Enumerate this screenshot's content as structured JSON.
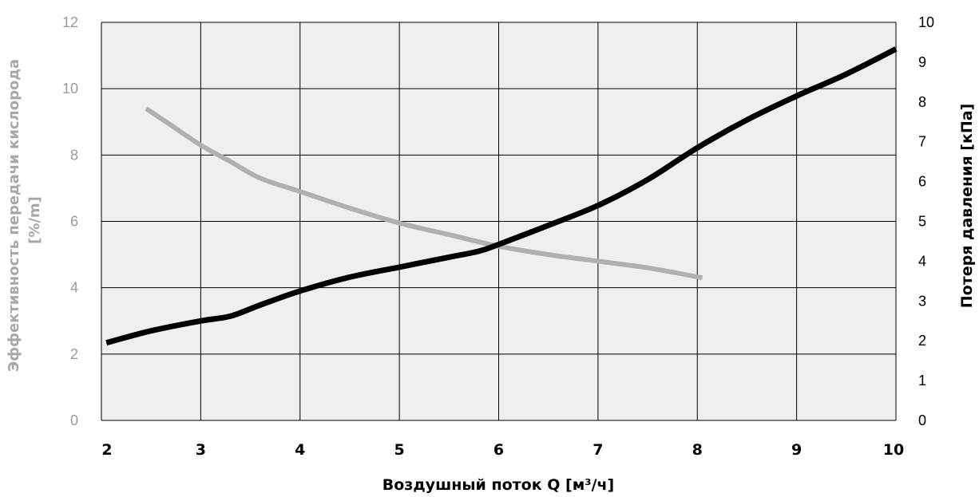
{
  "chart_data": {
    "type": "line",
    "xlabel": "Воздушный поток Q [м³/ч]",
    "xlim": [
      2,
      10
    ],
    "x_ticks": [
      "2",
      "3",
      "4",
      "5",
      "6",
      "7",
      "8",
      "9",
      "10"
    ],
    "y_left": {
      "label_line1": "Эффективность передачи кислорода",
      "label_line2": "[%/m]",
      "lim": [
        0,
        12
      ],
      "ticks": [
        "0",
        "2",
        "4",
        "6",
        "8",
        "10",
        "12"
      ],
      "color": "#a8a8a8"
    },
    "y_right": {
      "label": "Потеря давления [кПа]",
      "lim": [
        0,
        10
      ],
      "ticks": [
        "0",
        "1",
        "2",
        "3",
        "4",
        "5",
        "6",
        "7",
        "8",
        "9",
        "10"
      ],
      "color": "#000000"
    },
    "grid": true,
    "plot_background": "#efefef",
    "series": [
      {
        "axis": "left",
        "color": "#b0b0b0",
        "x": [
          2.45,
          2.7,
          3.0,
          3.3,
          3.6,
          4.0,
          4.5,
          5.0,
          5.5,
          6.0,
          6.5,
          7.0,
          7.5,
          8.05
        ],
        "y": [
          9.4,
          8.9,
          8.3,
          7.8,
          7.3,
          6.9,
          6.4,
          5.95,
          5.6,
          5.25,
          5.0,
          4.8,
          4.6,
          4.3
        ]
      },
      {
        "axis": "right",
        "color": "#000000",
        "x": [
          2.05,
          2.5,
          3.0,
          3.3,
          3.6,
          4.0,
          4.5,
          5.0,
          5.5,
          5.8,
          6.0,
          6.5,
          7.0,
          7.5,
          8.0,
          8.5,
          9.0,
          9.5,
          10.0
        ],
        "y": [
          1.95,
          2.25,
          2.5,
          2.62,
          2.9,
          3.25,
          3.6,
          3.85,
          4.1,
          4.25,
          4.42,
          4.9,
          5.4,
          6.05,
          6.85,
          7.55,
          8.15,
          8.7,
          9.33
        ]
      }
    ]
  }
}
